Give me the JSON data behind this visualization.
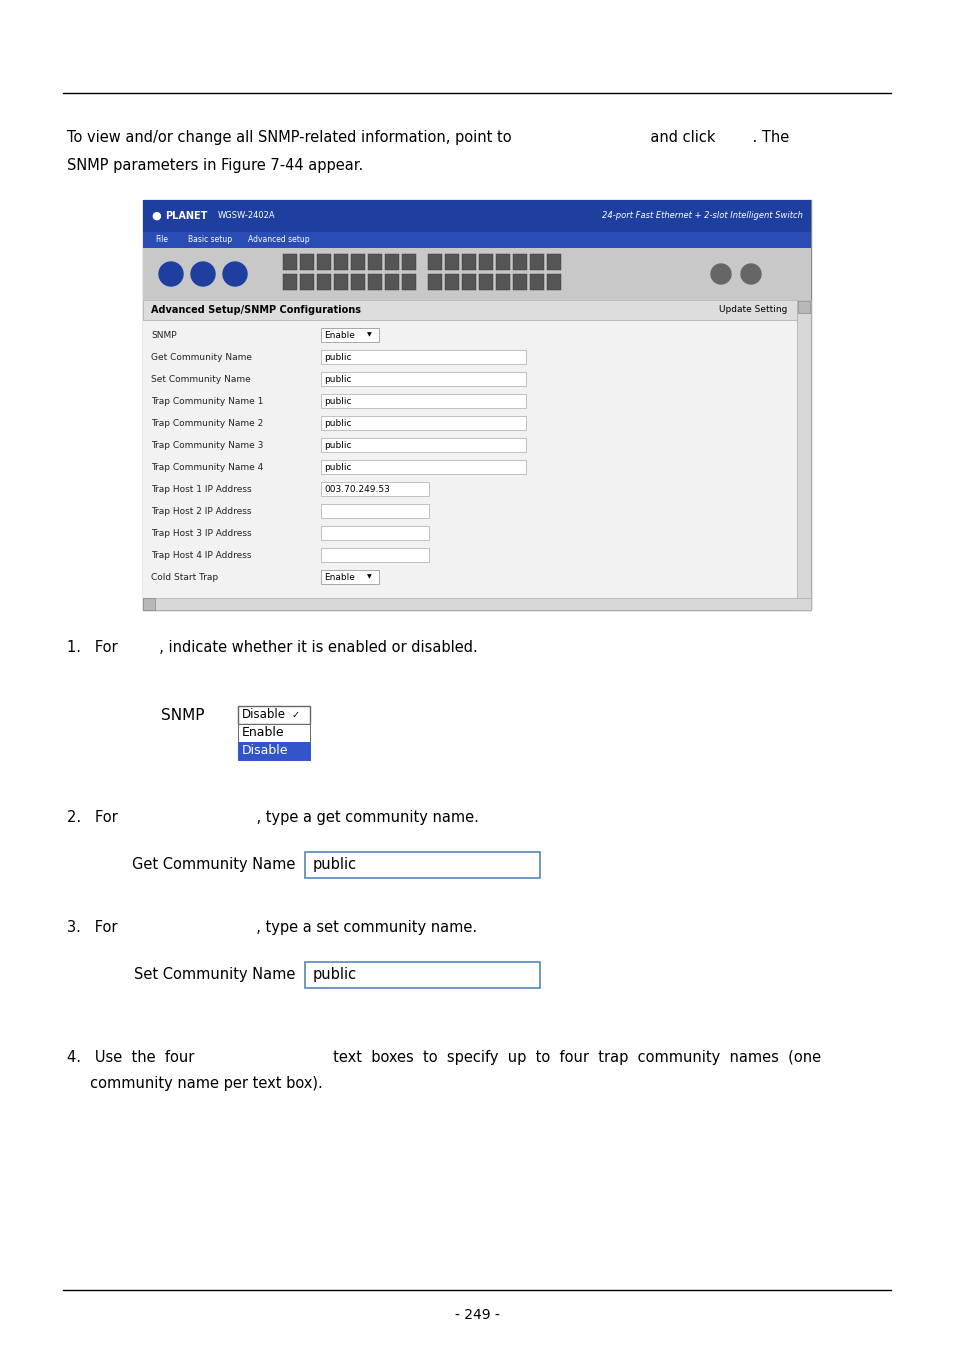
{
  "bg_color": "#ffffff",
  "page_number": "- 249 -",
  "intro_text_line1": "To view and/or change all SNMP-related information, point to                              and click        . The",
  "intro_text_line2": "SNMP parameters in Figure 7-44 appear.",
  "item1_text": "1.   For         , indicate whether it is enabled or disabled.",
  "item2_text": "2.   For                              , type a get community name.",
  "item3_text": "3.   For                              , type a set community name.",
  "item4_text": "4.   Use  the  four                              text  boxes  to  specify  up  to  four  trap  community  names  (one",
  "item4_text2": "     community name per text box).",
  "form_rows": [
    {
      "label": "SNMP",
      "value": "Enable",
      "type": "dropdown"
    },
    {
      "label": "Get Community Name",
      "value": "public",
      "type": "input"
    },
    {
      "label": "Set Community Name",
      "value": "public",
      "type": "input"
    },
    {
      "label": "Trap Community Name 1",
      "value": "public",
      "type": "input"
    },
    {
      "label": "Trap Community Name 2",
      "value": "public",
      "type": "input"
    },
    {
      "label": "Trap Community Name 3",
      "value": "public",
      "type": "input"
    },
    {
      "label": "Trap Community Name 4",
      "value": "public",
      "type": "input"
    },
    {
      "label": "Trap Host 1 IP Address",
      "value": "003.70.249.53",
      "type": "input_short"
    },
    {
      "label": "Trap Host 2 IP Address",
      "value": "",
      "type": "input_short"
    },
    {
      "label": "Trap Host 3 IP Address",
      "value": "",
      "type": "input_short"
    },
    {
      "label": "Trap Host 4 IP Address",
      "value": "",
      "type": "input_short"
    },
    {
      "label": "Cold Start Trap",
      "value": "Enable",
      "type": "dropdown"
    }
  ]
}
